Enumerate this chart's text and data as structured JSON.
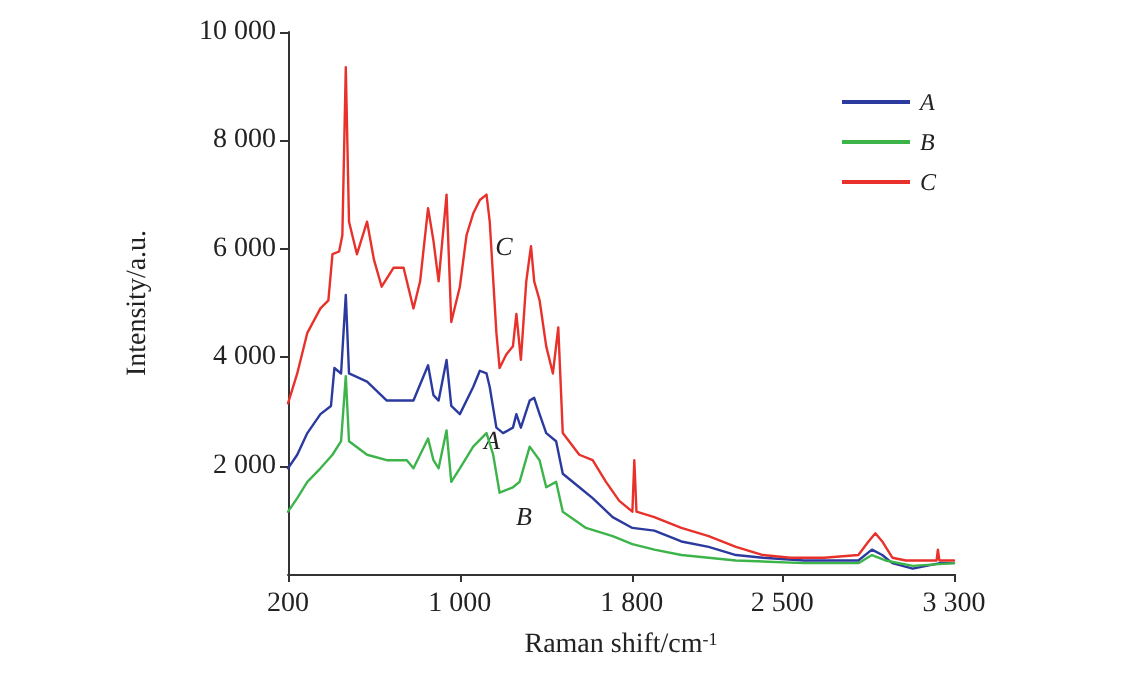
{
  "chart_data": {
    "type": "line",
    "xlabel": "Raman shift/cm$^{-1}$",
    "ylabel": "Intensity/a.u.",
    "xlim": [
      200,
      3300
    ],
    "xticks": [
      200,
      {
        "value": 1000,
        "label": "1 000"
      },
      {
        "value": 1800,
        "label": "1 800"
      },
      {
        "value": 2500,
        "label": "2 500"
      },
      {
        "value": 3300,
        "label": "3 300"
      }
    ],
    "ylim": [
      0,
      10000
    ],
    "yticks": [
      {
        "value": 2000,
        "label": "2 000"
      },
      {
        "value": 4000,
        "label": "4 000"
      },
      {
        "value": 6000,
        "label": "6 000"
      },
      {
        "value": 8000,
        "label": "8 000"
      },
      {
        "value": 10000,
        "label": "10 000"
      }
    ],
    "grid": false,
    "legend": "top right",
    "marker": "none",
    "line_style": "solid",
    "annotations": [
      "C",
      "A",
      "B"
    ],
    "series": [
      {
        "name": "A",
        "color": "#2b3a9e",
        "x": [
          200,
          243,
          290,
          351,
          400,
          416,
          447,
          469,
          484,
          568,
          660,
          753,
          784,
          852,
          877,
          901,
          938,
          960,
          1000,
          1062,
          1093,
          1124,
          1139,
          1170,
          1201,
          1247,
          1263,
          1284,
          1325,
          1346,
          1371,
          1402,
          1448,
          1479,
          1556,
          1618,
          1711,
          1803,
          1905,
          2031,
          2158,
          2285,
          2411,
          2601,
          2855,
          2918,
          2966,
          3013,
          3108,
          3235,
          3300
        ],
        "values": [
          1950,
          2200,
          2600,
          2950,
          3100,
          3800,
          3700,
          5150,
          3700,
          3550,
          3200,
          3200,
          3200,
          3850,
          3300,
          3200,
          3950,
          3100,
          2950,
          3450,
          3750,
          3700,
          3450,
          2700,
          2600,
          2700,
          2950,
          2700,
          3200,
          3250,
          2950,
          2600,
          2450,
          1850,
          1600,
          1400,
          1050,
          850,
          800,
          600,
          500,
          350,
          300,
          250,
          250,
          450,
          350,
          200,
          100,
          200,
          200
        ]
      },
      {
        "name": "B",
        "color": "#3cb44a",
        "x": [
          200,
          243,
          290,
          351,
          407,
          447,
          469,
          484,
          568,
          660,
          753,
          784,
          852,
          877,
          901,
          938,
          960,
          1000,
          1062,
          1124,
          1155,
          1185,
          1247,
          1278,
          1325,
          1371,
          1402,
          1448,
          1479,
          1587,
          1711,
          1803,
          1905,
          2031,
          2285,
          2601,
          2855,
          2918,
          2981,
          3108,
          3300
        ],
        "values": [
          1150,
          1400,
          1700,
          1950,
          2200,
          2450,
          3650,
          2450,
          2200,
          2100,
          2100,
          1950,
          2500,
          2100,
          1950,
          2650,
          1700,
          1950,
          2350,
          2600,
          2200,
          1500,
          1600,
          1700,
          2350,
          2100,
          1600,
          1700,
          1150,
          850,
          700,
          550,
          450,
          350,
          250,
          200,
          200,
          350,
          250,
          150,
          200
        ]
      },
      {
        "name": "C",
        "color": "#e8312a",
        "x": [
          200,
          243,
          290,
          351,
          388,
          407,
          438,
          453,
          469,
          484,
          521,
          568,
          600,
          636,
          691,
          738,
          784,
          815,
          852,
          877,
          901,
          938,
          960,
          1000,
          1031,
          1062,
          1093,
          1124,
          1139,
          1170,
          1185,
          1216,
          1247,
          1263,
          1284,
          1309,
          1331,
          1346,
          1371,
          1402,
          1433,
          1458,
          1479,
          1556,
          1618,
          1680,
          1742,
          1803,
          1812,
          1822,
          1905,
          2031,
          2158,
          2285,
          2411,
          2538,
          2696,
          2855,
          2902,
          2934,
          2966,
          3013,
          3076,
          3219,
          3225,
          3232,
          3300
        ],
        "values": [
          3150,
          3700,
          4450,
          4900,
          5050,
          5900,
          5950,
          6250,
          9350,
          6500,
          5900,
          6500,
          5800,
          5300,
          5650,
          5650,
          4900,
          5400,
          6750,
          6150,
          5400,
          7000,
          4650,
          5300,
          6250,
          6650,
          6900,
          7000,
          6500,
          4450,
          3800,
          4050,
          4200,
          4800,
          3950,
          5400,
          6050,
          5400,
          5050,
          4200,
          3700,
          4550,
          2600,
          2200,
          2100,
          1700,
          1350,
          1150,
          2100,
          1150,
          1050,
          850,
          700,
          500,
          350,
          300,
          300,
          350,
          600,
          750,
          600,
          300,
          250,
          250,
          450,
          250,
          250
        ]
      }
    ]
  }
}
